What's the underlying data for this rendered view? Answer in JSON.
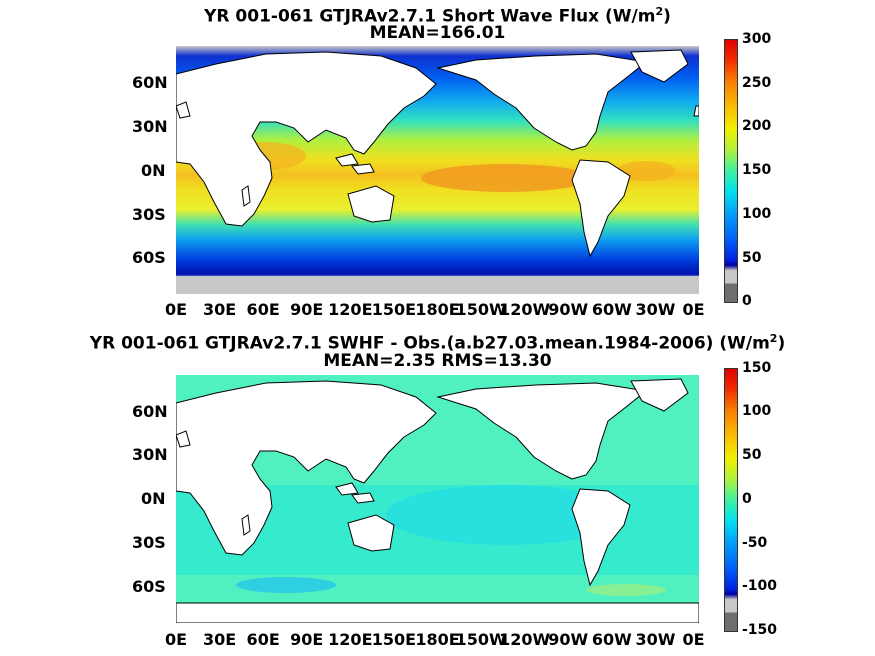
{
  "panels": [
    {
      "title_pre": "YR 001-061 GTJRAv2.7.1  Short Wave Flux (W/m",
      "title_sup": "2",
      "title_post": ")",
      "subtitle": "MEAN=166.01",
      "lat_labels": [
        "60N",
        "30N",
        "0N",
        "30S",
        "60S"
      ],
      "lon_labels": [
        "0E",
        "30E",
        "60E",
        "90E",
        "120E",
        "150E",
        "180E",
        "150W",
        "120W",
        "90W",
        "60W",
        "30W",
        "0E"
      ],
      "colorbar_labels": [
        "300",
        "250",
        "200",
        "150",
        "100",
        "50",
        "0"
      ],
      "colorbar_range": [
        0,
        300
      ]
    },
    {
      "title_pre": "YR 001-061 GTJRAv2.7.1 SWHF - Obs.(a.b27.03.mean.1984-2006) (W/m",
      "title_sup": "2",
      "title_post": ")",
      "subtitle": "MEAN=2.35 RMS=13.30",
      "lat_labels": [
        "60N",
        "30N",
        "0N",
        "30S",
        "60S"
      ],
      "lon_labels": [
        "0E",
        "30E",
        "60E",
        "90E",
        "120E",
        "150E",
        "180E",
        "150W",
        "120W",
        "90W",
        "60W",
        "30W",
        "0E"
      ],
      "colorbar_labels": [
        "150",
        "100",
        "50",
        "0",
        "-50",
        "-100",
        "-150"
      ],
      "colorbar_range": [
        -150,
        150
      ]
    }
  ],
  "colors": {
    "land": "#ffffff",
    "coast": "#000000",
    "missing": "#c8c8c8",
    "below_range": "#6e6e6e"
  }
}
